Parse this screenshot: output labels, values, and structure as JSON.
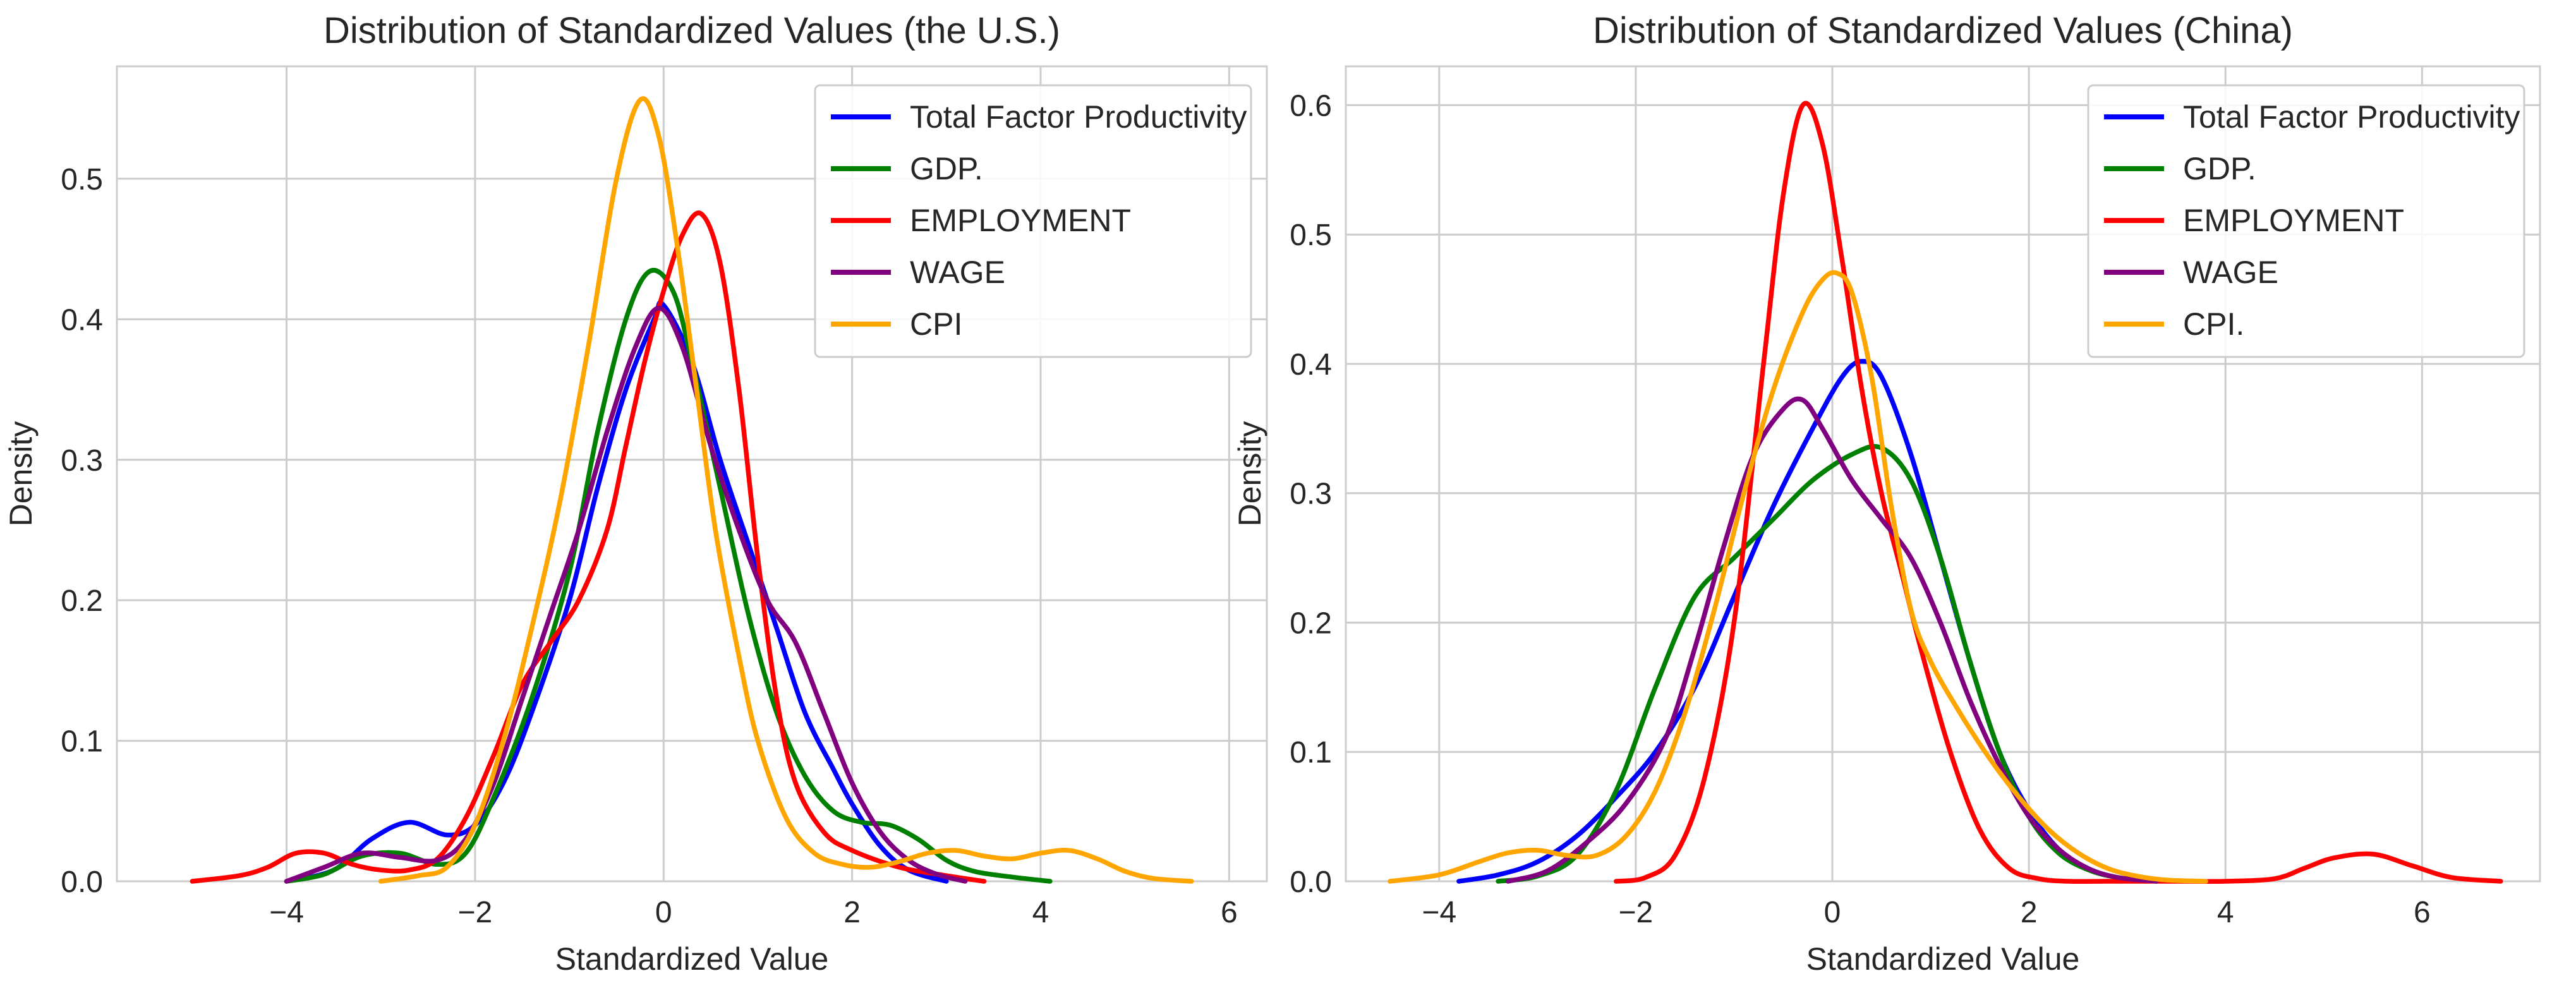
{
  "chart_data": [
    {
      "type": "line",
      "title": "Distribution of Standardized Values (the U.S.)",
      "xlabel": "Standardized Value",
      "ylabel": "Density",
      "xlim": [
        -5.8,
        6.4
      ],
      "ylim": [
        0,
        0.58
      ],
      "xticks": [
        -4,
        -2,
        0,
        2,
        4,
        6
      ],
      "xtick_labels": [
        "−4",
        "−2",
        "0",
        "2",
        "4",
        "6"
      ],
      "yticks": [
        0,
        0.1,
        0.2,
        0.3,
        0.4,
        0.5
      ],
      "ytick_labels": [
        "0.0",
        "0.1",
        "0.2",
        "0.3",
        "0.4",
        "0.5"
      ],
      "grid": true,
      "legend_position": "top-right",
      "series": [
        {
          "name": "Total Factor Productivity",
          "color": "#0000ff",
          "x": [
            -4.0,
            -3.5,
            -3.1,
            -2.7,
            -2.3,
            -2.0,
            -1.7,
            -1.4,
            -1.0,
            -0.7,
            -0.4,
            -0.1,
            0.0,
            0.3,
            0.6,
            0.9,
            1.2,
            1.5,
            1.8,
            2.0,
            2.3,
            2.6,
            3.0
          ],
          "y": [
            0.0,
            0.008,
            0.03,
            0.042,
            0.033,
            0.04,
            0.07,
            0.12,
            0.2,
            0.28,
            0.35,
            0.4,
            0.41,
            0.37,
            0.3,
            0.24,
            0.18,
            0.12,
            0.08,
            0.055,
            0.025,
            0.008,
            0.0
          ]
        },
        {
          "name": "GDP.",
          "color": "#008000",
          "x": [
            -4.0,
            -3.6,
            -3.2,
            -2.8,
            -2.4,
            -2.1,
            -1.8,
            -1.4,
            -1.0,
            -0.7,
            -0.4,
            -0.15,
            0.1,
            0.3,
            0.6,
            0.9,
            1.2,
            1.5,
            1.8,
            2.1,
            2.4,
            2.7,
            3.0,
            3.3,
            3.7,
            4.1
          ],
          "y": [
            0.0,
            0.005,
            0.018,
            0.02,
            0.012,
            0.02,
            0.06,
            0.13,
            0.22,
            0.32,
            0.4,
            0.434,
            0.42,
            0.37,
            0.28,
            0.19,
            0.12,
            0.075,
            0.05,
            0.042,
            0.04,
            0.03,
            0.015,
            0.007,
            0.003,
            0.0
          ]
        },
        {
          "name": "EMPLOYMENT",
          "color": "#ff0000",
          "x": [
            -5.0,
            -4.5,
            -4.2,
            -3.9,
            -3.6,
            -3.3,
            -3.0,
            -2.7,
            -2.4,
            -2.1,
            -1.8,
            -1.5,
            -1.2,
            -0.9,
            -0.6,
            -0.4,
            -0.2,
            0.0,
            0.2,
            0.4,
            0.6,
            0.8,
            1.0,
            1.2,
            1.4,
            1.7,
            2.0,
            2.5,
            3.0,
            3.4
          ],
          "y": [
            0.0,
            0.004,
            0.01,
            0.02,
            0.02,
            0.012,
            0.008,
            0.008,
            0.016,
            0.045,
            0.09,
            0.14,
            0.17,
            0.2,
            0.25,
            0.31,
            0.37,
            0.42,
            0.46,
            0.475,
            0.44,
            0.35,
            0.23,
            0.13,
            0.07,
            0.035,
            0.022,
            0.01,
            0.004,
            0.0
          ]
        },
        {
          "name": "WAGE",
          "color": "#800080",
          "x": [
            -4.0,
            -3.6,
            -3.2,
            -2.8,
            -2.4,
            -2.1,
            -1.8,
            -1.5,
            -1.2,
            -0.9,
            -0.6,
            -0.3,
            -0.05,
            0.2,
            0.5,
            0.8,
            1.1,
            1.4,
            1.7,
            2.0,
            2.3,
            2.6,
            2.9,
            3.2
          ],
          "y": [
            0.0,
            0.01,
            0.02,
            0.017,
            0.015,
            0.03,
            0.07,
            0.13,
            0.19,
            0.25,
            0.32,
            0.38,
            0.408,
            0.38,
            0.31,
            0.25,
            0.2,
            0.17,
            0.12,
            0.07,
            0.035,
            0.015,
            0.005,
            0.0
          ]
        },
        {
          "name": "CPI",
          "color": "#ffa500",
          "x": [
            -3.0,
            -2.6,
            -2.3,
            -2.0,
            -1.7,
            -1.4,
            -1.1,
            -0.8,
            -0.5,
            -0.25,
            -0.05,
            0.15,
            0.35,
            0.55,
            0.8,
            1.0,
            1.3,
            1.6,
            1.9,
            2.2,
            2.5,
            2.8,
            3.1,
            3.4,
            3.7,
            4.0,
            4.3,
            4.6,
            4.9,
            5.2,
            5.6
          ],
          "y": [
            0.0,
            0.004,
            0.01,
            0.04,
            0.1,
            0.18,
            0.27,
            0.38,
            0.5,
            0.556,
            0.53,
            0.45,
            0.35,
            0.25,
            0.16,
            0.1,
            0.045,
            0.02,
            0.012,
            0.01,
            0.014,
            0.02,
            0.022,
            0.018,
            0.016,
            0.02,
            0.022,
            0.016,
            0.007,
            0.002,
            0.0
          ]
        }
      ]
    },
    {
      "type": "line",
      "title": "Distribution of Standardized Values (China)",
      "xlabel": "Standardized Value",
      "ylabel": "Density",
      "xlim": [
        -4.95,
        7.2
      ],
      "ylim": [
        0,
        0.63
      ],
      "xticks": [
        -4,
        -2,
        0,
        2,
        4,
        6
      ],
      "xtick_labels": [
        "−4",
        "−2",
        "0",
        "2",
        "4",
        "6"
      ],
      "yticks": [
        0,
        0.1,
        0.2,
        0.3,
        0.4,
        0.5,
        0.6
      ],
      "ytick_labels": [
        "0.0",
        "0.1",
        "0.2",
        "0.3",
        "0.4",
        "0.5",
        "0.6"
      ],
      "grid": true,
      "legend_position": "top-right",
      "series": [
        {
          "name": "Total Factor Productivity",
          "color": "#0000ff",
          "x": [
            -3.8,
            -3.4,
            -3.0,
            -2.6,
            -2.2,
            -1.8,
            -1.4,
            -1.0,
            -0.6,
            -0.2,
            0.1,
            0.3,
            0.5,
            0.8,
            1.1,
            1.4,
            1.7,
            2.0,
            2.3,
            2.6,
            2.9,
            3.3
          ],
          "y": [
            0.0,
            0.005,
            0.015,
            0.035,
            0.065,
            0.1,
            0.15,
            0.22,
            0.29,
            0.35,
            0.39,
            0.402,
            0.39,
            0.33,
            0.25,
            0.17,
            0.1,
            0.055,
            0.025,
            0.01,
            0.003,
            0.0
          ]
        },
        {
          "name": "GDP.",
          "color": "#008000",
          "x": [
            -3.4,
            -3.0,
            -2.6,
            -2.2,
            -1.8,
            -1.4,
            -1.0,
            -0.6,
            -0.2,
            0.2,
            0.5,
            0.8,
            1.1,
            1.4,
            1.7,
            2.0,
            2.3,
            2.6,
            2.9,
            3.3
          ],
          "y": [
            0.0,
            0.004,
            0.02,
            0.07,
            0.15,
            0.22,
            0.25,
            0.28,
            0.31,
            0.33,
            0.335,
            0.31,
            0.25,
            0.17,
            0.1,
            0.05,
            0.022,
            0.009,
            0.003,
            0.0
          ]
        },
        {
          "name": "EMPLOYMENT",
          "color": "#ff0000",
          "x": [
            -2.2,
            -1.9,
            -1.6,
            -1.3,
            -1.0,
            -0.7,
            -0.5,
            -0.3,
            -0.1,
            0.1,
            0.3,
            0.5,
            0.7,
            0.9,
            1.2,
            1.5,
            1.8,
            2.1,
            2.4,
            2.8,
            3.2,
            3.6,
            4.0,
            4.5,
            4.8,
            5.1,
            5.5,
            5.9,
            6.3,
            6.8
          ],
          "y": [
            0.0,
            0.003,
            0.02,
            0.08,
            0.2,
            0.4,
            0.53,
            0.6,
            0.57,
            0.48,
            0.38,
            0.3,
            0.24,
            0.18,
            0.1,
            0.04,
            0.01,
            0.002,
            0.0,
            0.0,
            0.0,
            0.0,
            0.0,
            0.002,
            0.01,
            0.018,
            0.021,
            0.012,
            0.003,
            0.0
          ]
        },
        {
          "name": "WAGE",
          "color": "#800080",
          "x": [
            -3.3,
            -2.9,
            -2.5,
            -2.1,
            -1.7,
            -1.4,
            -1.1,
            -0.8,
            -0.5,
            -0.3,
            -0.1,
            0.2,
            0.5,
            0.8,
            1.1,
            1.4,
            1.7,
            2.0,
            2.3,
            2.6,
            2.9,
            3.3
          ],
          "y": [
            0.0,
            0.008,
            0.03,
            0.06,
            0.11,
            0.18,
            0.26,
            0.33,
            0.365,
            0.372,
            0.35,
            0.31,
            0.28,
            0.25,
            0.2,
            0.14,
            0.09,
            0.05,
            0.025,
            0.01,
            0.003,
            0.0
          ]
        },
        {
          "name": "CPI.",
          "color": "#ffa500",
          "x": [
            -4.5,
            -4.0,
            -3.6,
            -3.3,
            -3.0,
            -2.7,
            -2.4,
            -2.1,
            -1.8,
            -1.5,
            -1.2,
            -0.9,
            -0.6,
            -0.3,
            -0.1,
            0.05,
            0.2,
            0.4,
            0.6,
            0.8,
            1.0,
            1.3,
            1.6,
            1.9,
            2.2,
            2.5,
            2.8,
            3.1,
            3.4,
            3.8
          ],
          "y": [
            0.0,
            0.005,
            0.015,
            0.022,
            0.024,
            0.02,
            0.02,
            0.035,
            0.07,
            0.13,
            0.21,
            0.3,
            0.38,
            0.44,
            0.465,
            0.47,
            0.455,
            0.39,
            0.29,
            0.21,
            0.17,
            0.13,
            0.095,
            0.065,
            0.04,
            0.022,
            0.01,
            0.004,
            0.001,
            0.0
          ]
        }
      ]
    }
  ]
}
